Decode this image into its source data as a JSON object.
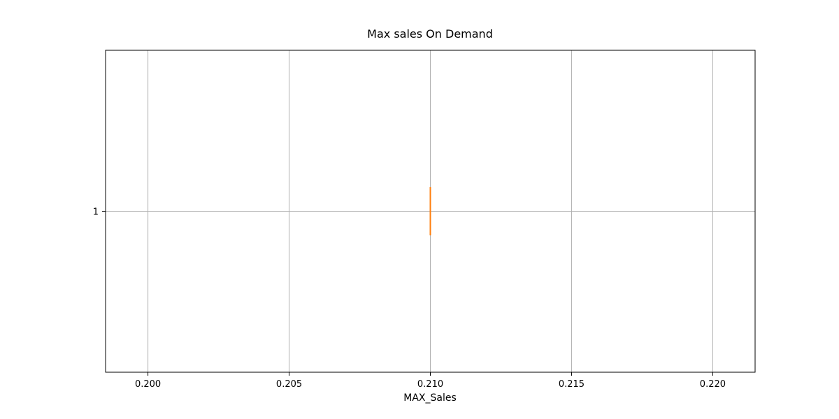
{
  "chart_data": {
    "type": "boxplot",
    "title": "Max sales On Demand",
    "xlabel": "MAX_Sales",
    "ylabel": "",
    "orientation": "horizontal",
    "xlim": [
      0.1985,
      0.2215
    ],
    "ylim": [
      0.5,
      1.5
    ],
    "x_ticks": [
      0.2,
      0.205,
      0.21,
      0.215,
      0.22
    ],
    "x_tick_labels": [
      "0.200",
      "0.205",
      "0.210",
      "0.215",
      "0.220"
    ],
    "y_ticks": [
      1
    ],
    "y_tick_labels": [
      "1"
    ],
    "grid": true,
    "boxes": [
      {
        "position": 1,
        "whisker_low": 0.21,
        "q1": 0.21,
        "median": 0.21,
        "q3": 0.21,
        "whisker_high": 0.21
      }
    ],
    "colors": {
      "box": "#000000",
      "median": "#ff7f0e",
      "grid": "#b0b0b0",
      "axes": "#000000"
    }
  }
}
